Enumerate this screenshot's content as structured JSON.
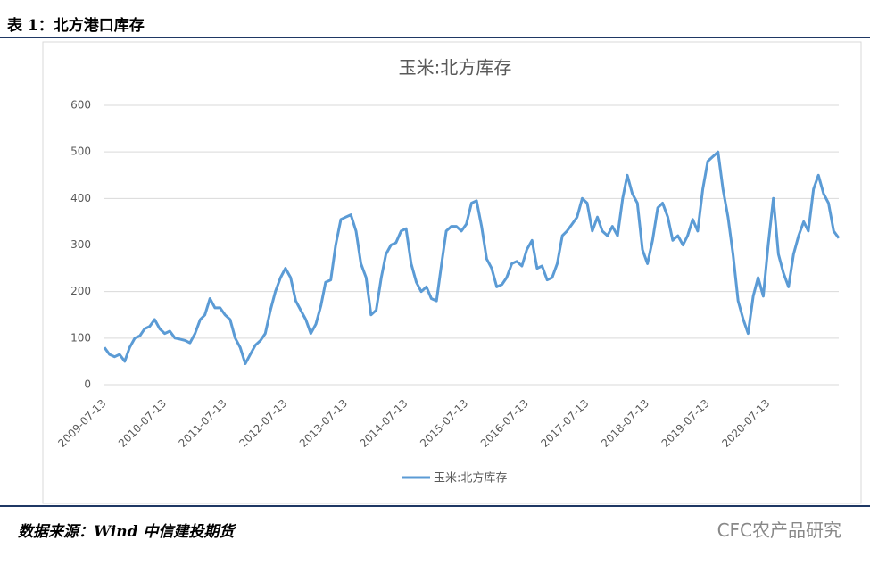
{
  "header": {
    "title": "表 1：北方港口库存"
  },
  "footer": {
    "source": "数据来源：Wind 中信建投期货",
    "watermark": "CFC农产品研究"
  },
  "chart_data": {
    "type": "line",
    "title": "玉米:北方库存",
    "x": [
      "2009-07-13",
      "2009-08-13",
      "2009-09-13",
      "2009-10-13",
      "2009-11-13",
      "2009-12-13",
      "2010-01-13",
      "2010-02-13",
      "2010-03-13",
      "2010-04-13",
      "2010-05-13",
      "2010-06-13",
      "2010-07-13",
      "2010-08-13",
      "2010-09-13",
      "2010-10-13",
      "2010-11-13",
      "2010-12-13",
      "2011-01-13",
      "2011-02-13",
      "2011-03-13",
      "2011-04-13",
      "2011-05-13",
      "2011-06-13",
      "2011-07-13",
      "2011-08-13",
      "2011-09-13",
      "2011-10-13",
      "2011-11-13",
      "2011-12-13",
      "2012-01-13",
      "2012-02-13",
      "2012-03-13",
      "2012-04-13",
      "2012-05-13",
      "2012-06-13",
      "2012-07-13",
      "2012-08-13",
      "2012-09-13",
      "2012-10-13",
      "2012-11-13",
      "2012-12-13",
      "2013-01-13",
      "2013-02-13",
      "2013-03-13",
      "2013-04-13",
      "2013-05-13",
      "2013-06-13",
      "2013-07-13",
      "2013-08-13",
      "2013-09-13",
      "2013-10-13",
      "2013-11-13",
      "2013-12-13",
      "2014-01-13",
      "2014-02-13",
      "2014-03-13",
      "2014-04-13",
      "2014-05-13",
      "2014-06-13",
      "2014-07-13",
      "2014-08-13",
      "2014-09-13",
      "2014-10-13",
      "2014-11-13",
      "2014-12-13",
      "2015-01-13",
      "2015-02-13",
      "2015-03-13",
      "2015-04-13",
      "2015-05-13",
      "2015-06-13",
      "2015-07-13",
      "2015-08-13",
      "2015-09-13",
      "2015-10-13",
      "2015-11-13",
      "2015-12-13",
      "2016-01-13",
      "2016-02-13",
      "2016-03-13",
      "2016-04-13",
      "2016-05-13",
      "2016-06-13",
      "2016-07-13",
      "2016-08-13",
      "2016-09-13",
      "2016-10-13",
      "2016-11-13",
      "2016-12-13",
      "2017-01-13",
      "2017-02-13",
      "2017-03-13",
      "2017-04-13",
      "2017-05-13",
      "2017-06-13",
      "2017-07-13",
      "2017-08-13",
      "2017-09-13",
      "2017-10-13",
      "2017-11-13",
      "2017-12-13",
      "2018-01-13",
      "2018-02-13",
      "2018-03-13",
      "2018-04-13",
      "2018-05-13",
      "2018-06-13",
      "2018-07-13",
      "2018-08-13",
      "2018-09-13",
      "2018-10-13",
      "2018-11-13",
      "2018-12-13",
      "2019-01-13",
      "2019-02-13",
      "2019-03-13",
      "2019-04-13",
      "2019-05-13",
      "2019-06-13",
      "2019-07-13",
      "2019-08-13",
      "2019-09-13",
      "2019-10-13",
      "2019-11-13",
      "2019-12-13",
      "2020-01-13",
      "2020-02-13",
      "2020-03-13",
      "2020-04-13",
      "2020-05-13",
      "2020-06-13",
      "2020-07-13",
      "2020-08-13",
      "2020-09-13",
      "2020-10-13",
      "2020-11-13",
      "2020-12-13",
      "2021-01-13",
      "2021-02-13",
      "2021-03-13",
      "2021-04-13",
      "2021-05-13",
      "2021-06-13",
      "2021-07-13",
      "2021-08-13",
      "2021-09-13"
    ],
    "series": [
      {
        "name": "玉米:北方库存",
        "color": "#5b9bd5",
        "values": [
          80,
          65,
          60,
          65,
          50,
          80,
          100,
          105,
          120,
          125,
          140,
          120,
          110,
          115,
          100,
          98,
          95,
          90,
          110,
          140,
          150,
          185,
          165,
          165,
          150,
          140,
          100,
          80,
          45,
          65,
          85,
          95,
          110,
          160,
          200,
          230,
          250,
          230,
          180,
          160,
          140,
          110,
          130,
          170,
          220,
          225,
          300,
          355,
          360,
          365,
          330,
          260,
          230,
          150,
          160,
          230,
          280,
          300,
          305,
          330,
          335,
          260,
          220,
          200,
          210,
          185,
          180,
          260,
          330,
          340,
          340,
          330,
          345,
          390,
          395,
          340,
          270,
          250,
          210,
          215,
          230,
          260,
          265,
          255,
          290,
          310,
          250,
          255,
          225,
          230,
          260,
          320,
          330,
          345,
          360,
          400,
          390,
          330,
          360,
          330,
          320,
          340,
          320,
          400,
          450,
          410,
          390,
          290,
          260,
          310,
          380,
          390,
          360,
          310,
          320,
          300,
          320,
          355,
          330,
          420,
          480,
          490,
          500,
          420,
          360,
          280,
          180,
          140,
          110,
          190,
          230,
          190,
          300,
          400,
          280,
          240,
          210,
          280,
          320,
          350,
          330,
          420,
          450,
          410,
          390,
          330,
          315
        ]
      }
    ],
    "xticks": [
      "2009-07-13",
      "2010-07-13",
      "2011-07-13",
      "2012-07-13",
      "2013-07-13",
      "2014-07-13",
      "2015-07-13",
      "2016-07-13",
      "2017-07-13",
      "2018-07-13",
      "2019-07-13",
      "2020-07-13"
    ],
    "ylim": [
      0,
      600
    ],
    "yticks": [
      0,
      100,
      200,
      300,
      400,
      500,
      600
    ],
    "grid": true,
    "legend": "bottom"
  }
}
